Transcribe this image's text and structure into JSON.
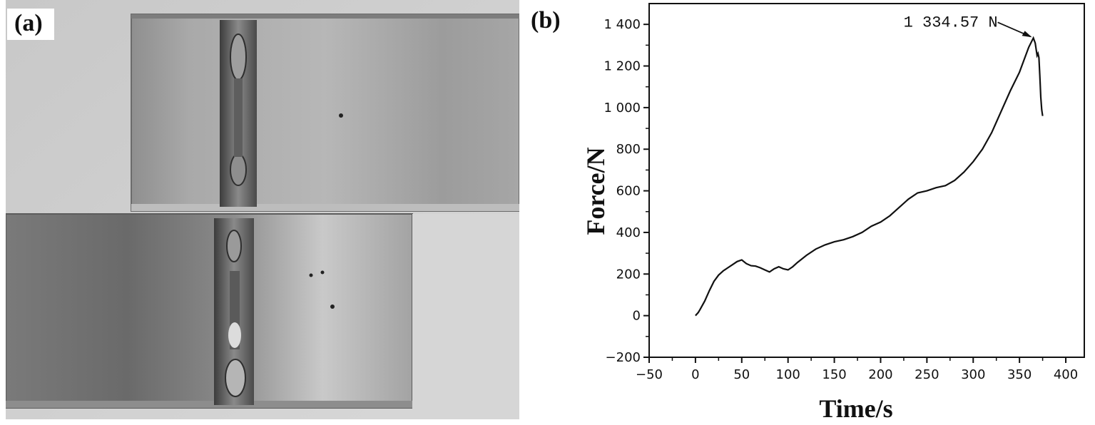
{
  "panels": {
    "a_label": "(a)",
    "b_label": "(b)"
  },
  "photo": {
    "description_icon": "welded-plates-photo"
  },
  "chart_data": {
    "type": "line",
    "xlabel": "Time/s",
    "ylabel": "Force/N",
    "xlim": [
      -50,
      420
    ],
    "ylim": [
      -200,
      1500
    ],
    "xticks": [
      -50,
      0,
      50,
      100,
      150,
      200,
      250,
      300,
      350,
      400
    ],
    "yticks": [
      -200,
      0,
      200,
      400,
      600,
      800,
      1000,
      1200,
      1400
    ],
    "xtick_labels": [
      "−50",
      "0",
      "50",
      "100",
      "150",
      "200",
      "250",
      "300",
      "350",
      "400"
    ],
    "ytick_labels": [
      "−200",
      "0",
      "200",
      "400",
      "600",
      "800",
      "1 000",
      "1 200",
      "1 400"
    ],
    "grid": false,
    "series": [
      {
        "x": [
          0,
          3,
          5,
          10,
          15,
          20,
          25,
          30,
          35,
          40,
          45,
          50,
          55,
          60,
          65,
          70,
          75,
          80,
          85,
          90,
          95,
          100,
          105,
          110,
          120,
          130,
          140,
          150,
          160,
          170,
          180,
          190,
          200,
          210,
          220,
          230,
          240,
          250,
          260,
          270,
          280,
          290,
          300,
          310,
          320,
          330,
          340,
          350,
          355,
          360,
          365,
          367,
          369,
          370,
          371,
          372,
          373,
          374,
          375
        ],
        "y": [
          0,
          15,
          30,
          70,
          120,
          165,
          195,
          215,
          230,
          245,
          260,
          268,
          250,
          240,
          238,
          230,
          220,
          210,
          225,
          235,
          225,
          220,
          235,
          255,
          290,
          320,
          340,
          355,
          365,
          380,
          400,
          430,
          450,
          480,
          520,
          560,
          590,
          600,
          615,
          625,
          650,
          690,
          740,
          800,
          880,
          980,
          1080,
          1170,
          1230,
          1290,
          1334.57,
          1310,
          1250,
          1260,
          1240,
          1150,
          1050,
          990,
          960
        ]
      }
    ],
    "annotations": [
      {
        "text": "1 334.57 N",
        "x": 365,
        "y": 1334.57
      }
    ]
  }
}
